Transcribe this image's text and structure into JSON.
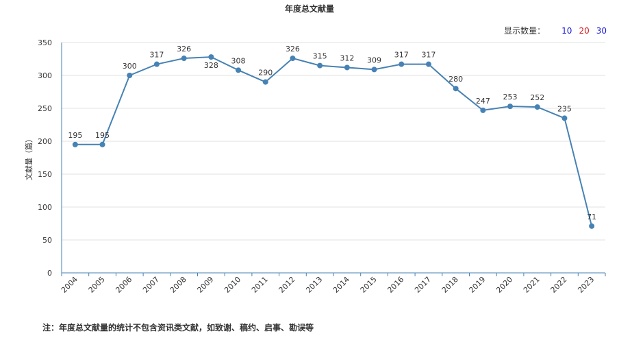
{
  "title": "年度总文献量",
  "count_selector": {
    "label": "显示数量：",
    "options": [
      {
        "label": "10",
        "color": "#1a1ad6"
      },
      {
        "label": "20",
        "color": "#d61a1a"
      },
      {
        "label": "30",
        "color": "#1a1ad6"
      }
    ]
  },
  "footnote": "注：年度总文献量的统计不包含资讯类文献，如致谢、稿约、启事、勘误等",
  "chart_data": {
    "type": "line",
    "title": "年度总文献量",
    "xlabel": "",
    "ylabel": "文献量（篇）",
    "ylim": [
      0,
      350
    ],
    "yticks": [
      0,
      50,
      100,
      150,
      200,
      250,
      300,
      350
    ],
    "grid": true,
    "line_color": "#4682b4",
    "categories": [
      "2004",
      "2005",
      "2006",
      "2007",
      "2008",
      "2009",
      "2010",
      "2011",
      "2012",
      "2013",
      "2014",
      "2015",
      "2016",
      "2017",
      "2018",
      "2019",
      "2020",
      "2021",
      "2022",
      "2023"
    ],
    "values": [
      195,
      195,
      300,
      317,
      326,
      328,
      308,
      290,
      326,
      315,
      312,
      309,
      317,
      317,
      280,
      247,
      253,
      252,
      235,
      71
    ]
  }
}
